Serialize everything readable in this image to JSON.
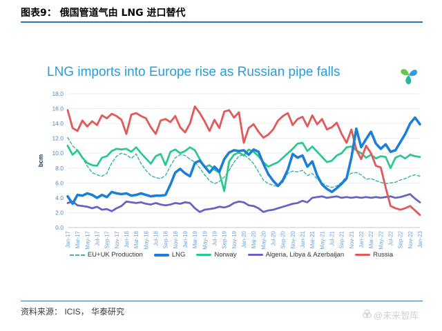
{
  "page": {
    "header_title": "图表9： 俄国管道气由 LNG 进口替代",
    "source_text": "资料来源： ICIS， 华泰研究",
    "watermark": "@未来智库"
  },
  "chart": {
    "title": "LNG imports into Europe rise as Russian pipe falls",
    "ylabel": "bcm",
    "title_color": "#2B9CD8",
    "axis_label_color": "#4E87C9",
    "gridline_color": "#ECECEC"
  },
  "chart_data": {
    "type": "line",
    "title": "LNG imports into Europe rise as Russian pipe falls",
    "xlabel": "",
    "ylabel": "bcm",
    "ylim": [
      0,
      18
    ],
    "ytick_step": 2,
    "grid": "horizontal",
    "legend_position": "bottom",
    "x_tick_labels": [
      "Jan-17",
      "Mar-17",
      "May-17",
      "Jul-17",
      "Sep-17",
      "Nov-17",
      "Jan-18",
      "Mar-18",
      "May-18",
      "Jul-18",
      "Sep-18",
      "Nov-18",
      "Jan-19",
      "Mar-19",
      "May-19",
      "Jul-19",
      "Sep-19",
      "Nov-19",
      "Jan-20",
      "Mar-20",
      "May-20",
      "Jul-20",
      "Sep-20",
      "Nov-20",
      "Jan-21",
      "Mar-21",
      "May-21",
      "Jul-21",
      "Sep-21",
      "Nov-21",
      "Jan-22",
      "Mar-22",
      "May-22",
      "Jul-22",
      "Sep-22",
      "Nov-22",
      "Jan-23"
    ],
    "x_points_per_tick": 2,
    "x_start": "Jan-17",
    "x_end": "Jan-23",
    "x_frequency": "monthly",
    "series": [
      {
        "name": "EU+UK Production",
        "color": "#3FB5AE",
        "style": "dashed",
        "width": 1.5,
        "values": [
          12.1,
          11.0,
          10.4,
          9.4,
          8.3,
          7.4,
          7.1,
          6.9,
          7.3,
          8.7,
          9.6,
          10.0,
          9.8,
          9.3,
          9.9,
          8.6,
          7.7,
          7.0,
          6.7,
          6.6,
          7.0,
          8.3,
          9.4,
          9.8,
          9.7,
          9.2,
          8.8,
          8.0,
          7.1,
          6.3,
          5.9,
          6.2,
          6.8,
          7.7,
          8.8,
          9.6,
          9.8,
          9.3,
          8.6,
          7.5,
          6.4,
          5.9,
          5.7,
          5.5,
          6.1,
          7.3,
          7.6,
          7.5,
          7.7,
          7.0,
          7.3,
          6.5,
          6.0,
          5.6,
          5.4,
          5.6,
          6.1,
          6.9,
          7.3,
          7.4,
          7.1,
          6.5,
          6.6,
          6.3,
          6.1,
          5.9,
          6.0,
          6.1,
          6.4,
          6.6,
          6.9,
          7.1,
          6.9
        ]
      },
      {
        "name": "Norway",
        "color": "#2BC98F",
        "style": "solid",
        "width": 2.8,
        "values": [
          11.0,
          9.8,
          10.4,
          9.4,
          8.7,
          8.4,
          8.3,
          9.4,
          9.6,
          10.3,
          10.6,
          10.5,
          10.6,
          10.2,
          10.8,
          10.0,
          9.3,
          8.6,
          9.6,
          9.9,
          8.4,
          10.2,
          10.5,
          10.0,
          10.3,
          10.8,
          10.4,
          9.2,
          8.1,
          8.4,
          7.8,
          7.4,
          4.9,
          8.9,
          9.8,
          10.1,
          9.7,
          10.5,
          10.2,
          9.6,
          8.8,
          8.2,
          8.5,
          8.8,
          9.4,
          10.0,
          10.6,
          11.3,
          11.4,
          10.3,
          10.9,
          10.2,
          9.5,
          8.8,
          9.0,
          9.7,
          10.0,
          10.8,
          10.9,
          10.4,
          10.0,
          9.4,
          9.8,
          9.3,
          9.6,
          9.5,
          8.0,
          9.4,
          9.7,
          9.3,
          9.8,
          9.6,
          9.5
        ]
      },
      {
        "name": "Algeria, Libya & Azerbaijan",
        "color": "#6663C4",
        "style": "solid",
        "width": 2.8,
        "values": [
          3.3,
          3.5,
          3.0,
          2.9,
          2.8,
          2.6,
          2.8,
          2.4,
          2.5,
          2.2,
          2.6,
          2.9,
          3.5,
          3.4,
          3.3,
          3.4,
          3.2,
          3.1,
          3.3,
          3.1,
          3.0,
          3.1,
          3.3,
          3.2,
          3.4,
          3.3,
          2.6,
          2.1,
          2.4,
          2.5,
          2.6,
          2.8,
          2.7,
          2.9,
          3.3,
          3.5,
          3.4,
          3.0,
          2.9,
          2.6,
          2.1,
          2.3,
          2.4,
          2.6,
          2.8,
          3.0,
          3.2,
          3.3,
          3.6,
          3.4,
          4.0,
          4.1,
          4.2,
          4.0,
          4.1,
          4.2,
          4.0,
          4.1,
          4.0,
          4.1,
          4.0,
          4.1,
          4.0,
          4.1,
          4.0,
          4.1,
          4.2,
          4.0,
          4.1,
          4.3,
          4.5,
          3.9,
          3.4
        ]
      },
      {
        "name": "Russia",
        "color": "#E05C5C",
        "style": "solid",
        "width": 2.9,
        "values": [
          15.8,
          13.4,
          13.0,
          14.4,
          13.6,
          14.3,
          13.8,
          15.1,
          14.7,
          15.3,
          15.0,
          14.5,
          12.6,
          15.2,
          15.4,
          15.0,
          14.7,
          13.5,
          12.6,
          14.4,
          14.6,
          14.2,
          15.0,
          13.5,
          12.8,
          14.0,
          16.3,
          15.4,
          14.3,
          13.0,
          14.5,
          13.4,
          15.6,
          15.8,
          14.8,
          15.5,
          11.4,
          13.4,
          13.9,
          12.9,
          12.1,
          12.5,
          13.2,
          14.4,
          15.0,
          15.4,
          13.8,
          14.6,
          14.9,
          13.6,
          15.1,
          13.9,
          14.6,
          13.2,
          13.5,
          14.1,
          12.6,
          11.4,
          13.2,
          10.5,
          9.2,
          11.0,
          10.0,
          8.3,
          8.1,
          5.4,
          2.9,
          2.6,
          2.4,
          2.6,
          2.9,
          2.3,
          1.7
        ]
      },
      {
        "name": "LNG",
        "color": "#1B7FD9",
        "style": "solid",
        "width": 3.6,
        "values": [
          4.2,
          3.2,
          4.4,
          4.3,
          4.6,
          4.4,
          4.0,
          4.4,
          4.1,
          4.8,
          4.6,
          4.5,
          4.6,
          4.3,
          4.4,
          4.6,
          4.4,
          4.2,
          4.3,
          4.3,
          4.4,
          5.8,
          7.4,
          7.9,
          7.3,
          6.9,
          8.7,
          9.0,
          8.2,
          7.4,
          8.2,
          7.5,
          9.2,
          10.1,
          10.4,
          10.3,
          10.4,
          9.8,
          10.5,
          10.2,
          8.6,
          7.2,
          6.3,
          5.6,
          6.4,
          7.8,
          9.9,
          9.4,
          9.7,
          8.2,
          8.9,
          7.0,
          5.8,
          5.2,
          4.8,
          5.3,
          5.9,
          6.6,
          9.4,
          13.3,
          10.8,
          11.9,
          12.9,
          11.3,
          10.6,
          11.2,
          10.2,
          10.4,
          11.5,
          12.6,
          14.0,
          14.8,
          13.9
        ]
      }
    ],
    "legend_order": [
      "EU+UK Production",
      "LNG",
      "Norway",
      "Algeria, Libya & Azerbaijan",
      "Russia"
    ]
  }
}
